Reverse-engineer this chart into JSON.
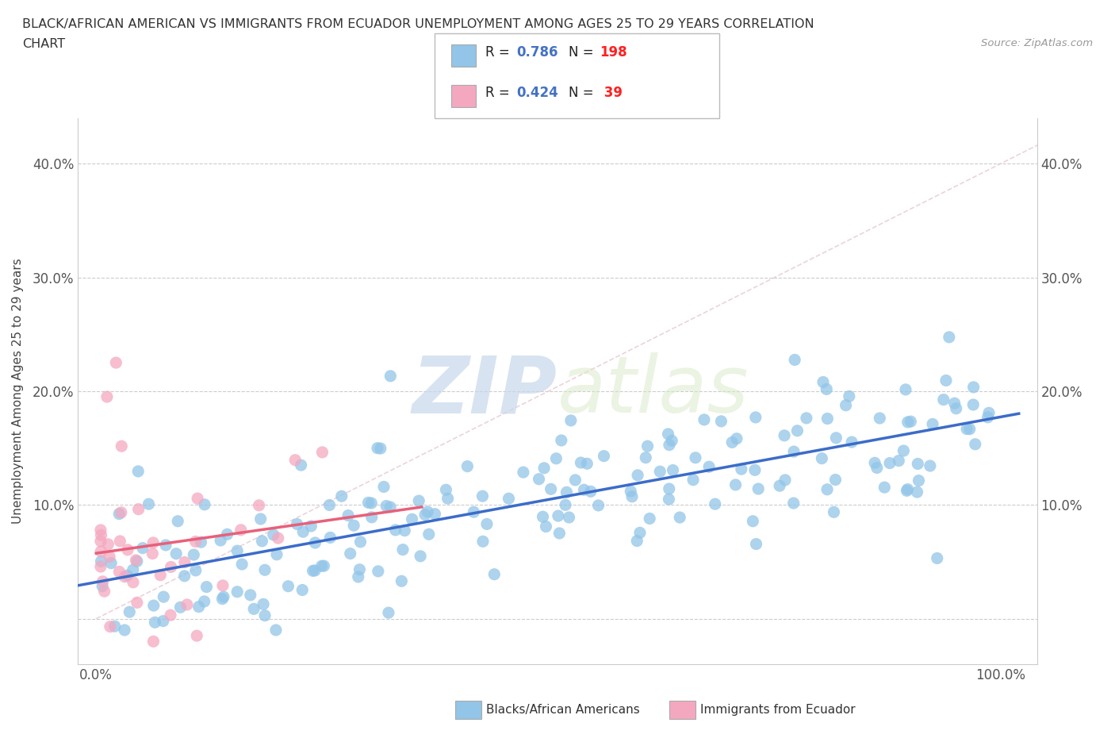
{
  "title_line1": "BLACK/AFRICAN AMERICAN VS IMMIGRANTS FROM ECUADOR UNEMPLOYMENT AMONG AGES 25 TO 29 YEARS CORRELATION",
  "title_line2": "CHART",
  "source_text": "Source: ZipAtlas.com",
  "ylabel": "Unemployment Among Ages 25 to 29 years",
  "xlim": [
    -0.02,
    1.04
  ],
  "ylim": [
    -0.04,
    0.44
  ],
  "xticks": [
    0.0,
    0.1,
    0.2,
    0.3,
    0.4,
    0.5,
    0.6,
    0.7,
    0.8,
    0.9,
    1.0
  ],
  "xtick_labels": [
    "0.0%",
    "",
    "",
    "",
    "",
    "",
    "",
    "",
    "",
    "",
    "100.0%"
  ],
  "yticks": [
    0.0,
    0.1,
    0.2,
    0.3,
    0.4
  ],
  "ytick_labels": [
    "",
    "10.0%",
    "20.0%",
    "30.0%",
    "40.0%"
  ],
  "blue_R": 0.786,
  "blue_N": 198,
  "pink_R": 0.424,
  "pink_N": 39,
  "blue_color": "#92C5E8",
  "pink_color": "#F4A8C0",
  "blue_line_color": "#3B6CC9",
  "pink_line_color": "#E8607A",
  "diag_line_color": "#DDDDDD",
  "legend_R_color": "#4472C4",
  "legend_N_color": "#FF2020",
  "watermark_color": "#E8E8F0",
  "watermark": "ZIPatlas"
}
